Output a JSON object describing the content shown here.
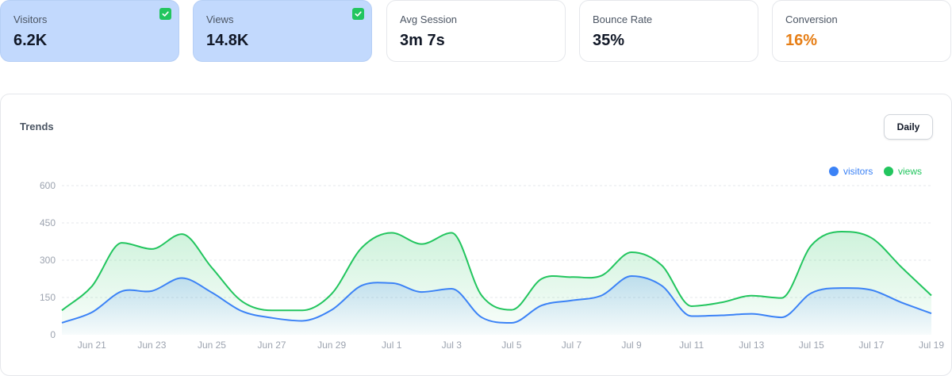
{
  "stats": [
    {
      "label": "Visitors",
      "value": "6.2K",
      "selected": true
    },
    {
      "label": "Views",
      "value": "14.8K",
      "selected": true
    },
    {
      "label": "Avg Session",
      "value": "3m 7s",
      "selected": false
    },
    {
      "label": "Bounce Rate",
      "value": "35%",
      "selected": false
    },
    {
      "label": "Conversion",
      "value": "16%",
      "selected": false,
      "accent_color": "#e67e16"
    }
  ],
  "trends": {
    "title": "Trends",
    "interval_label": "Daily"
  },
  "colors": {
    "visitors": "#3b82f6",
    "views": "#22c55e",
    "selected_card": "#c2d9fd",
    "check": "#22c55e"
  },
  "chart_data": {
    "type": "area",
    "x": [
      "Jun 20",
      "Jun 21",
      "Jun 22",
      "Jun 23",
      "Jun 24",
      "Jun 25",
      "Jun 26",
      "Jun 27",
      "Jun 28",
      "Jun 29",
      "Jun 30",
      "Jul 1",
      "Jul 2",
      "Jul 3",
      "Jul 4",
      "Jul 5",
      "Jul 6",
      "Jul 7",
      "Jul 8",
      "Jul 9",
      "Jul 10",
      "Jul 11",
      "Jul 12",
      "Jul 13",
      "Jul 14",
      "Jul 15",
      "Jul 16",
      "Jul 17",
      "Jul 18",
      "Jul 19"
    ],
    "x_tick_labels": [
      "Jun 21",
      "Jun 23",
      "Jun 25",
      "Jun 27",
      "Jun 29",
      "Jul 1",
      "Jul 3",
      "Jul 5",
      "Jul 7",
      "Jul 9",
      "Jul 11",
      "Jul 13",
      "Jul 15",
      "Jul 17",
      "Jul 19"
    ],
    "y_ticks": [
      0,
      150,
      300,
      450,
      600
    ],
    "ylim": [
      0,
      600
    ],
    "grid": true,
    "legend_position": "top-right",
    "series": [
      {
        "name": "visitors",
        "values": [
          48,
          90,
          175,
          176,
          228,
          170,
          95,
          68,
          56,
          100,
          198,
          208,
          172,
          185,
          70,
          48,
          118,
          138,
          158,
          236,
          198,
          75,
          78,
          84,
          70,
          168,
          188,
          180,
          130,
          86
        ]
      },
      {
        "name": "views",
        "values": [
          98,
          195,
          370,
          345,
          405,
          270,
          135,
          98,
          98,
          165,
          350,
          410,
          365,
          410,
          158,
          100,
          225,
          232,
          238,
          332,
          280,
          115,
          130,
          157,
          148,
          360,
          415,
          390,
          272,
          158
        ]
      }
    ]
  }
}
